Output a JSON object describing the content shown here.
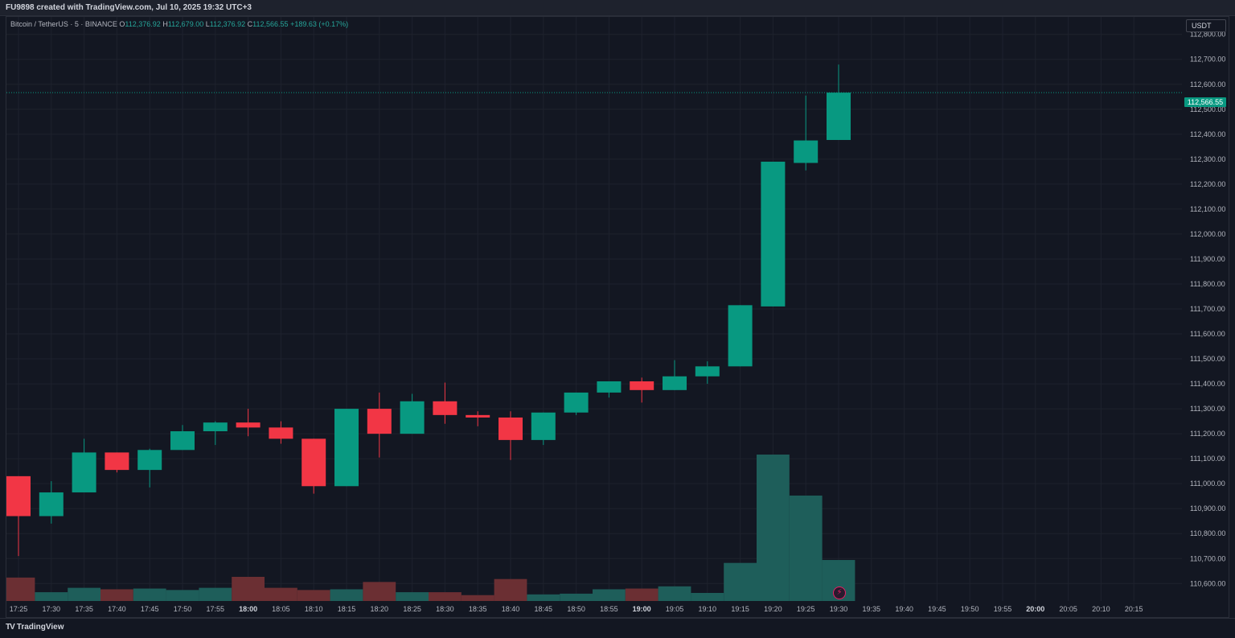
{
  "header": {
    "caption": "FU9898 created with TradingView.com, Jul 10, 2025 19:32 UTC+3"
  },
  "legend": {
    "symbol": "Bitcoin / TetherUS · 5 · BINANCE",
    "o_label": "O",
    "o_value": "112,376.92",
    "h_label": "H",
    "h_value": "112,679.00",
    "l_label": "L",
    "l_value": "112,376.92",
    "c_label": "C",
    "c_value": "112,566.55",
    "change": "+189.63 (+0.17%)"
  },
  "price_scale": {
    "currency": "USDT",
    "last_price": "112,566.55"
  },
  "footer": {
    "brand": "TradingView",
    "brand_mark": "TV"
  },
  "colors": {
    "up": "#089981",
    "down": "#f23645",
    "volume_up": "#1e5e5a",
    "volume_down": "#6b2f33",
    "grid": "#1e222d",
    "background": "#131722"
  },
  "chart_data": {
    "type": "candlestick",
    "timeframe": "5",
    "y_range": [
      110530,
      112870
    ],
    "y_ticks": [
      110600,
      110700,
      110800,
      110900,
      111000,
      111100,
      111200,
      111300,
      111400,
      111500,
      111600,
      111700,
      111800,
      111900,
      112000,
      112100,
      112200,
      112300,
      112400,
      112500,
      112600,
      112700,
      112800
    ],
    "y_tick_labels": [
      "110,600.00",
      "110,700.00",
      "110,800.00",
      "110,900.00",
      "111,000.00",
      "111,100.00",
      "111,200.00",
      "111,300.00",
      "111,400.00",
      "111,500.00",
      "111,600.00",
      "111,700.00",
      "111,800.00",
      "111,900.00",
      "112,000.00",
      "112,100.00",
      "112,200.00",
      "112,300.00",
      "112,400.00",
      "112,500.00",
      "112,600.00",
      "112,700.00",
      "112,800.00"
    ],
    "x_ticks": [
      "17:25",
      "17:30",
      "17:35",
      "17:40",
      "17:45",
      "17:50",
      "17:55",
      "18:00",
      "18:05",
      "18:10",
      "18:15",
      "18:20",
      "18:25",
      "18:30",
      "18:35",
      "18:40",
      "18:45",
      "18:50",
      "18:55",
      "19:00",
      "19:05",
      "19:10",
      "19:15",
      "19:20",
      "19:25",
      "19:30",
      "19:35",
      "19:40",
      "19:45",
      "19:50",
      "19:55",
      "20:00",
      "20:05",
      "20:10",
      "20:15"
    ],
    "x_ticks_bold": [
      "18:00",
      "19:00",
      "20:00"
    ],
    "candles": [
      {
        "t": "17:25",
        "o": 111030,
        "h": 111030,
        "l": 110710,
        "c": 110870
      },
      {
        "t": "17:30",
        "o": 110870,
        "h": 111010,
        "l": 110840,
        "c": 110965
      },
      {
        "t": "17:35",
        "o": 110965,
        "h": 111180,
        "l": 110965,
        "c": 111125
      },
      {
        "t": "17:40",
        "o": 111125,
        "h": 111125,
        "l": 111045,
        "c": 111055
      },
      {
        "t": "17:45",
        "o": 111055,
        "h": 111140,
        "l": 110985,
        "c": 111135
      },
      {
        "t": "17:50",
        "o": 111135,
        "h": 111235,
        "l": 111135,
        "c": 111210
      },
      {
        "t": "17:55",
        "o": 111210,
        "h": 111250,
        "l": 111155,
        "c": 111245
      },
      {
        "t": "18:00",
        "o": 111245,
        "h": 111300,
        "l": 111190,
        "c": 111225
      },
      {
        "t": "18:05",
        "o": 111225,
        "h": 111250,
        "l": 111160,
        "c": 111180
      },
      {
        "t": "18:10",
        "o": 111180,
        "h": 111180,
        "l": 110960,
        "c": 110990
      },
      {
        "t": "18:15",
        "o": 110990,
        "h": 111300,
        "l": 110990,
        "c": 111300
      },
      {
        "t": "18:20",
        "o": 111300,
        "h": 111365,
        "l": 111105,
        "c": 111200
      },
      {
        "t": "18:25",
        "o": 111200,
        "h": 111360,
        "l": 111200,
        "c": 111330
      },
      {
        "t": "18:30",
        "o": 111330,
        "h": 111405,
        "l": 111240,
        "c": 111275
      },
      {
        "t": "18:35",
        "o": 111275,
        "h": 111290,
        "l": 111230,
        "c": 111265
      },
      {
        "t": "18:40",
        "o": 111265,
        "h": 111290,
        "l": 111095,
        "c": 111175
      },
      {
        "t": "18:45",
        "o": 111175,
        "h": 111285,
        "l": 111155,
        "c": 111285
      },
      {
        "t": "18:50",
        "o": 111285,
        "h": 111365,
        "l": 111275,
        "c": 111365
      },
      {
        "t": "18:55",
        "o": 111365,
        "h": 111410,
        "l": 111345,
        "c": 111410
      },
      {
        "t": "19:00",
        "o": 111410,
        "h": 111425,
        "l": 111325,
        "c": 111375
      },
      {
        "t": "19:05",
        "o": 111375,
        "h": 111495,
        "l": 111375,
        "c": 111430
      },
      {
        "t": "19:10",
        "o": 111430,
        "h": 111490,
        "l": 111400,
        "c": 111470
      },
      {
        "t": "19:15",
        "o": 111470,
        "h": 111715,
        "l": 111470,
        "c": 111715
      },
      {
        "t": "19:20",
        "o": 111710,
        "h": 112290,
        "l": 111710,
        "c": 112290
      },
      {
        "t": "19:25",
        "o": 112285,
        "h": 112555,
        "l": 112255,
        "c": 112375
      },
      {
        "t": "19:30",
        "o": 112376.92,
        "h": 112679,
        "l": 112376.92,
        "c": 112566.55
      }
    ],
    "volumes": [
      0.16,
      0.06,
      0.09,
      0.08,
      0.085,
      0.075,
      0.09,
      0.165,
      0.09,
      0.075,
      0.08,
      0.13,
      0.06,
      0.06,
      0.04,
      0.15,
      0.045,
      0.05,
      0.08,
      0.085,
      0.1,
      0.055,
      0.26,
      1.0,
      0.72,
      0.28
    ]
  }
}
